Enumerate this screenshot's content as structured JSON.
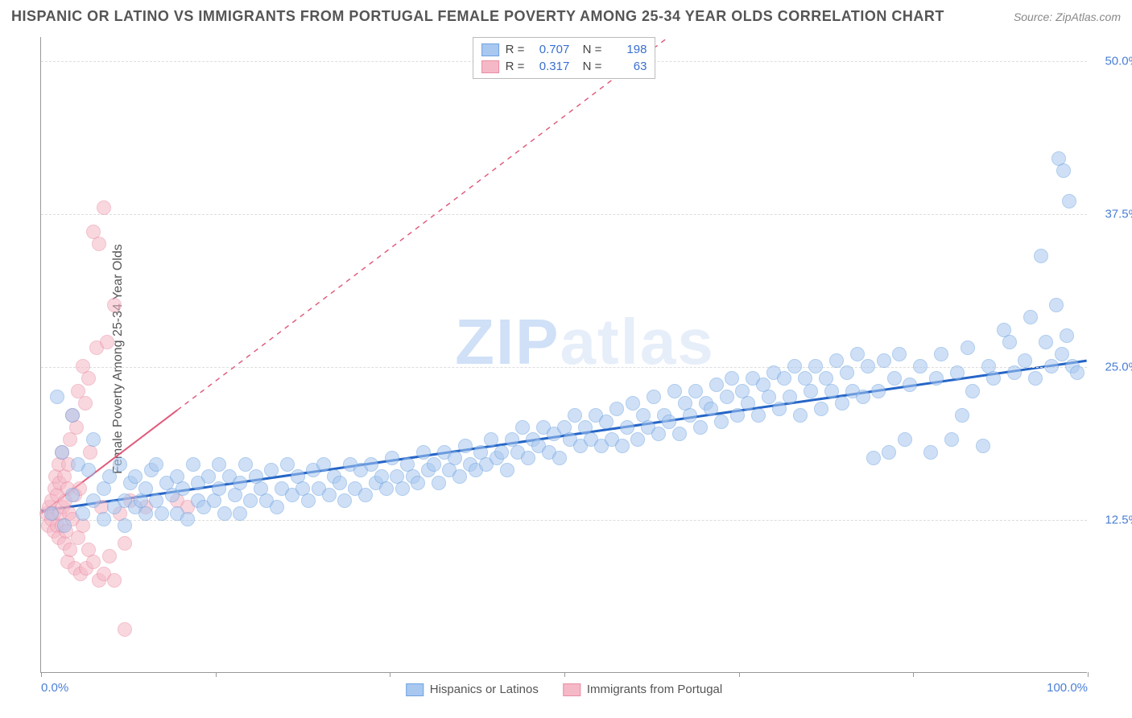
{
  "title": "HISPANIC OR LATINO VS IMMIGRANTS FROM PORTUGAL FEMALE POVERTY AMONG 25-34 YEAR OLDS CORRELATION CHART",
  "source": "Source: ZipAtlas.com",
  "y_axis_label": "Female Poverty Among 25-34 Year Olds",
  "watermark_a": "ZIP",
  "watermark_b": "atlas",
  "chart": {
    "type": "scatter",
    "background_color": "#ffffff",
    "grid_color": "#dddddd",
    "axis_color": "#999999",
    "xlim": [
      0,
      100
    ],
    "ylim": [
      0,
      52
    ],
    "x_ticks": [
      0,
      16.67,
      33.33,
      50,
      66.67,
      83.33,
      100
    ],
    "x_tick_labels_shown": {
      "0": "0.0%",
      "100": "100.0%"
    },
    "y_ticks": [
      12.5,
      25.0,
      37.5,
      50.0
    ],
    "y_tick_labels": [
      "12.5%",
      "25.0%",
      "37.5%",
      "50.0%"
    ],
    "point_radius": 9,
    "point_opacity": 0.55,
    "series": [
      {
        "name": "Hispanics or Latinos",
        "color_fill": "#a8c8f0",
        "color_stroke": "#6fa3e0",
        "r": "0.707",
        "n": "198",
        "trend": {
          "x1": 0,
          "y1": 13.2,
          "x2": 100,
          "y2": 25.5,
          "color": "#2565c7",
          "width": 3,
          "solid_until_x": 100
        },
        "points": [
          [
            1,
            13
          ],
          [
            1.5,
            22.5
          ],
          [
            2,
            18
          ],
          [
            2.2,
            12
          ],
          [
            3,
            21
          ],
          [
            3,
            14.5
          ],
          [
            3.5,
            17
          ],
          [
            4,
            13
          ],
          [
            4.5,
            16.5
          ],
          [
            5,
            14
          ],
          [
            5,
            19
          ],
          [
            6,
            15
          ],
          [
            6,
            12.5
          ],
          [
            6.5,
            16
          ],
          [
            7,
            13.5
          ],
          [
            7.5,
            17
          ],
          [
            8,
            14
          ],
          [
            8,
            12
          ],
          [
            8.5,
            15.5
          ],
          [
            9,
            16
          ],
          [
            9,
            13.5
          ],
          [
            9.5,
            14
          ],
          [
            10,
            13
          ],
          [
            10,
            15
          ],
          [
            10.5,
            16.5
          ],
          [
            11,
            14
          ],
          [
            11,
            17
          ],
          [
            11.5,
            13
          ],
          [
            12,
            15.5
          ],
          [
            12.5,
            14.5
          ],
          [
            13,
            16
          ],
          [
            13,
            13
          ],
          [
            13.5,
            15
          ],
          [
            14,
            12.5
          ],
          [
            14.5,
            17
          ],
          [
            15,
            14
          ],
          [
            15,
            15.5
          ],
          [
            15.5,
            13.5
          ],
          [
            16,
            16
          ],
          [
            16.5,
            14
          ],
          [
            17,
            15
          ],
          [
            17,
            17
          ],
          [
            17.5,
            13
          ],
          [
            18,
            16
          ],
          [
            18.5,
            14.5
          ],
          [
            19,
            15.5
          ],
          [
            19,
            13
          ],
          [
            19.5,
            17
          ],
          [
            20,
            14
          ],
          [
            20.5,
            16
          ],
          [
            21,
            15
          ],
          [
            21.5,
            14
          ],
          [
            22,
            16.5
          ],
          [
            22.5,
            13.5
          ],
          [
            23,
            15
          ],
          [
            23.5,
            17
          ],
          [
            24,
            14.5
          ],
          [
            24.5,
            16
          ],
          [
            25,
            15
          ],
          [
            25.5,
            14
          ],
          [
            26,
            16.5
          ],
          [
            26.5,
            15
          ],
          [
            27,
            17
          ],
          [
            27.5,
            14.5
          ],
          [
            28,
            16
          ],
          [
            28.5,
            15.5
          ],
          [
            29,
            14
          ],
          [
            29.5,
            17
          ],
          [
            30,
            15
          ],
          [
            30.5,
            16.5
          ],
          [
            31,
            14.5
          ],
          [
            31.5,
            17
          ],
          [
            32,
            15.5
          ],
          [
            32.5,
            16
          ],
          [
            33,
            15
          ],
          [
            33.5,
            17.5
          ],
          [
            34,
            16
          ],
          [
            34.5,
            15
          ],
          [
            35,
            17
          ],
          [
            35.5,
            16
          ],
          [
            36,
            15.5
          ],
          [
            36.5,
            18
          ],
          [
            37,
            16.5
          ],
          [
            37.5,
            17
          ],
          [
            38,
            15.5
          ],
          [
            38.5,
            18
          ],
          [
            39,
            16.5
          ],
          [
            39.5,
            17.5
          ],
          [
            40,
            16
          ],
          [
            40.5,
            18.5
          ],
          [
            41,
            17
          ],
          [
            41.5,
            16.5
          ],
          [
            42,
            18
          ],
          [
            42.5,
            17
          ],
          [
            43,
            19
          ],
          [
            43.5,
            17.5
          ],
          [
            44,
            18
          ],
          [
            44.5,
            16.5
          ],
          [
            45,
            19
          ],
          [
            45.5,
            18
          ],
          [
            46,
            20
          ],
          [
            46.5,
            17.5
          ],
          [
            47,
            19
          ],
          [
            47.5,
            18.5
          ],
          [
            48,
            20
          ],
          [
            48.5,
            18
          ],
          [
            49,
            19.5
          ],
          [
            49.5,
            17.5
          ],
          [
            50,
            20
          ],
          [
            50.5,
            19
          ],
          [
            51,
            21
          ],
          [
            51.5,
            18.5
          ],
          [
            52,
            20
          ],
          [
            52.5,
            19
          ],
          [
            53,
            21
          ],
          [
            53.5,
            18.5
          ],
          [
            54,
            20.5
          ],
          [
            54.5,
            19
          ],
          [
            55,
            21.5
          ],
          [
            55.5,
            18.5
          ],
          [
            56,
            20
          ],
          [
            56.5,
            22
          ],
          [
            57,
            19
          ],
          [
            57.5,
            21
          ],
          [
            58,
            20
          ],
          [
            58.5,
            22.5
          ],
          [
            59,
            19.5
          ],
          [
            59.5,
            21
          ],
          [
            60,
            20.5
          ],
          [
            60.5,
            23
          ],
          [
            61,
            19.5
          ],
          [
            61.5,
            22
          ],
          [
            62,
            21
          ],
          [
            62.5,
            23
          ],
          [
            63,
            20
          ],
          [
            63.5,
            22
          ],
          [
            64,
            21.5
          ],
          [
            64.5,
            23.5
          ],
          [
            65,
            20.5
          ],
          [
            65.5,
            22.5
          ],
          [
            66,
            24
          ],
          [
            66.5,
            21
          ],
          [
            67,
            23
          ],
          [
            67.5,
            22
          ],
          [
            68,
            24
          ],
          [
            68.5,
            21
          ],
          [
            69,
            23.5
          ],
          [
            69.5,
            22.5
          ],
          [
            70,
            24.5
          ],
          [
            70.5,
            21.5
          ],
          [
            71,
            24
          ],
          [
            71.5,
            22.5
          ],
          [
            72,
            25
          ],
          [
            72.5,
            21
          ],
          [
            73,
            24
          ],
          [
            73.5,
            23
          ],
          [
            74,
            25
          ],
          [
            74.5,
            21.5
          ],
          [
            75,
            24
          ],
          [
            75.5,
            23
          ],
          [
            76,
            25.5
          ],
          [
            76.5,
            22
          ],
          [
            77,
            24.5
          ],
          [
            77.5,
            23
          ],
          [
            78,
            26
          ],
          [
            78.5,
            22.5
          ],
          [
            79,
            25
          ],
          [
            79.5,
            17.5
          ],
          [
            80,
            23
          ],
          [
            80.5,
            25.5
          ],
          [
            81,
            18
          ],
          [
            81.5,
            24
          ],
          [
            82,
            26
          ],
          [
            82.5,
            19
          ],
          [
            83,
            23.5
          ],
          [
            84,
            25
          ],
          [
            85,
            18
          ],
          [
            85.5,
            24
          ],
          [
            86,
            26
          ],
          [
            87,
            19
          ],
          [
            87.5,
            24.5
          ],
          [
            88,
            21
          ],
          [
            88.5,
            26.5
          ],
          [
            89,
            23
          ],
          [
            90,
            18.5
          ],
          [
            90.5,
            25
          ],
          [
            91,
            24
          ],
          [
            92,
            28
          ],
          [
            92.5,
            27
          ],
          [
            93,
            24.5
          ],
          [
            94,
            25.5
          ],
          [
            94.5,
            29
          ],
          [
            95,
            24
          ],
          [
            95.5,
            34
          ],
          [
            96,
            27
          ],
          [
            96.5,
            25
          ],
          [
            97,
            30
          ],
          [
            97.2,
            42
          ],
          [
            97.5,
            26
          ],
          [
            97.7,
            41
          ],
          [
            98,
            27.5
          ],
          [
            98.2,
            38.5
          ],
          [
            98.5,
            25
          ],
          [
            99,
            24.5
          ]
        ]
      },
      {
        "name": "Immigrants from Portugal",
        "color_fill": "#f5b8c6",
        "color_stroke": "#e98fa5",
        "r": "0.317",
        "n": "63",
        "trend": {
          "x1": 0,
          "y1": 13.0,
          "x2": 60,
          "y2": 52,
          "color": "#e05a7a",
          "width": 2,
          "solid_until_x": 13
        },
        "points": [
          [
            0.5,
            13
          ],
          [
            0.7,
            12
          ],
          [
            0.8,
            13.5
          ],
          [
            1,
            14
          ],
          [
            1,
            12.5
          ],
          [
            1.2,
            11.5
          ],
          [
            1.2,
            13
          ],
          [
            1.3,
            15
          ],
          [
            1.4,
            16
          ],
          [
            1.5,
            12
          ],
          [
            1.5,
            14.5
          ],
          [
            1.7,
            11
          ],
          [
            1.7,
            17
          ],
          [
            1.8,
            13
          ],
          [
            1.8,
            15.5
          ],
          [
            2,
            12
          ],
          [
            2,
            18
          ],
          [
            2.1,
            13.5
          ],
          [
            2.2,
            10.5
          ],
          [
            2.2,
            16
          ],
          [
            2.3,
            14
          ],
          [
            2.4,
            11.5
          ],
          [
            2.5,
            15
          ],
          [
            2.5,
            9
          ],
          [
            2.6,
            17
          ],
          [
            2.7,
            13
          ],
          [
            2.8,
            10
          ],
          [
            2.8,
            19
          ],
          [
            3,
            21
          ],
          [
            3,
            12.5
          ],
          [
            3.2,
            14.5
          ],
          [
            3.2,
            8.5
          ],
          [
            3.4,
            20
          ],
          [
            3.5,
            11
          ],
          [
            3.5,
            23
          ],
          [
            3.7,
            15
          ],
          [
            3.8,
            8
          ],
          [
            4,
            25
          ],
          [
            4,
            12
          ],
          [
            4.2,
            22
          ],
          [
            4.3,
            8.5
          ],
          [
            4.5,
            24
          ],
          [
            4.5,
            10
          ],
          [
            4.7,
            18
          ],
          [
            5,
            36
          ],
          [
            5,
            9
          ],
          [
            5.3,
            26.5
          ],
          [
            5.5,
            7.5
          ],
          [
            5.5,
            35
          ],
          [
            5.8,
            13.5
          ],
          [
            6,
            8
          ],
          [
            6,
            38
          ],
          [
            6.3,
            27
          ],
          [
            6.5,
            9.5
          ],
          [
            7,
            30
          ],
          [
            7,
            7.5
          ],
          [
            7.5,
            13
          ],
          [
            8,
            10.5
          ],
          [
            8,
            3.5
          ],
          [
            8.5,
            14
          ],
          [
            10,
            13.5
          ],
          [
            13,
            14
          ],
          [
            14,
            13.5
          ]
        ]
      }
    ]
  },
  "legend_bottom": [
    {
      "label": "Hispanics or Latinos",
      "fill": "#a8c8f0",
      "stroke": "#6fa3e0"
    },
    {
      "label": "Immigrants from Portugal",
      "fill": "#f5b8c6",
      "stroke": "#e98fa5"
    }
  ]
}
